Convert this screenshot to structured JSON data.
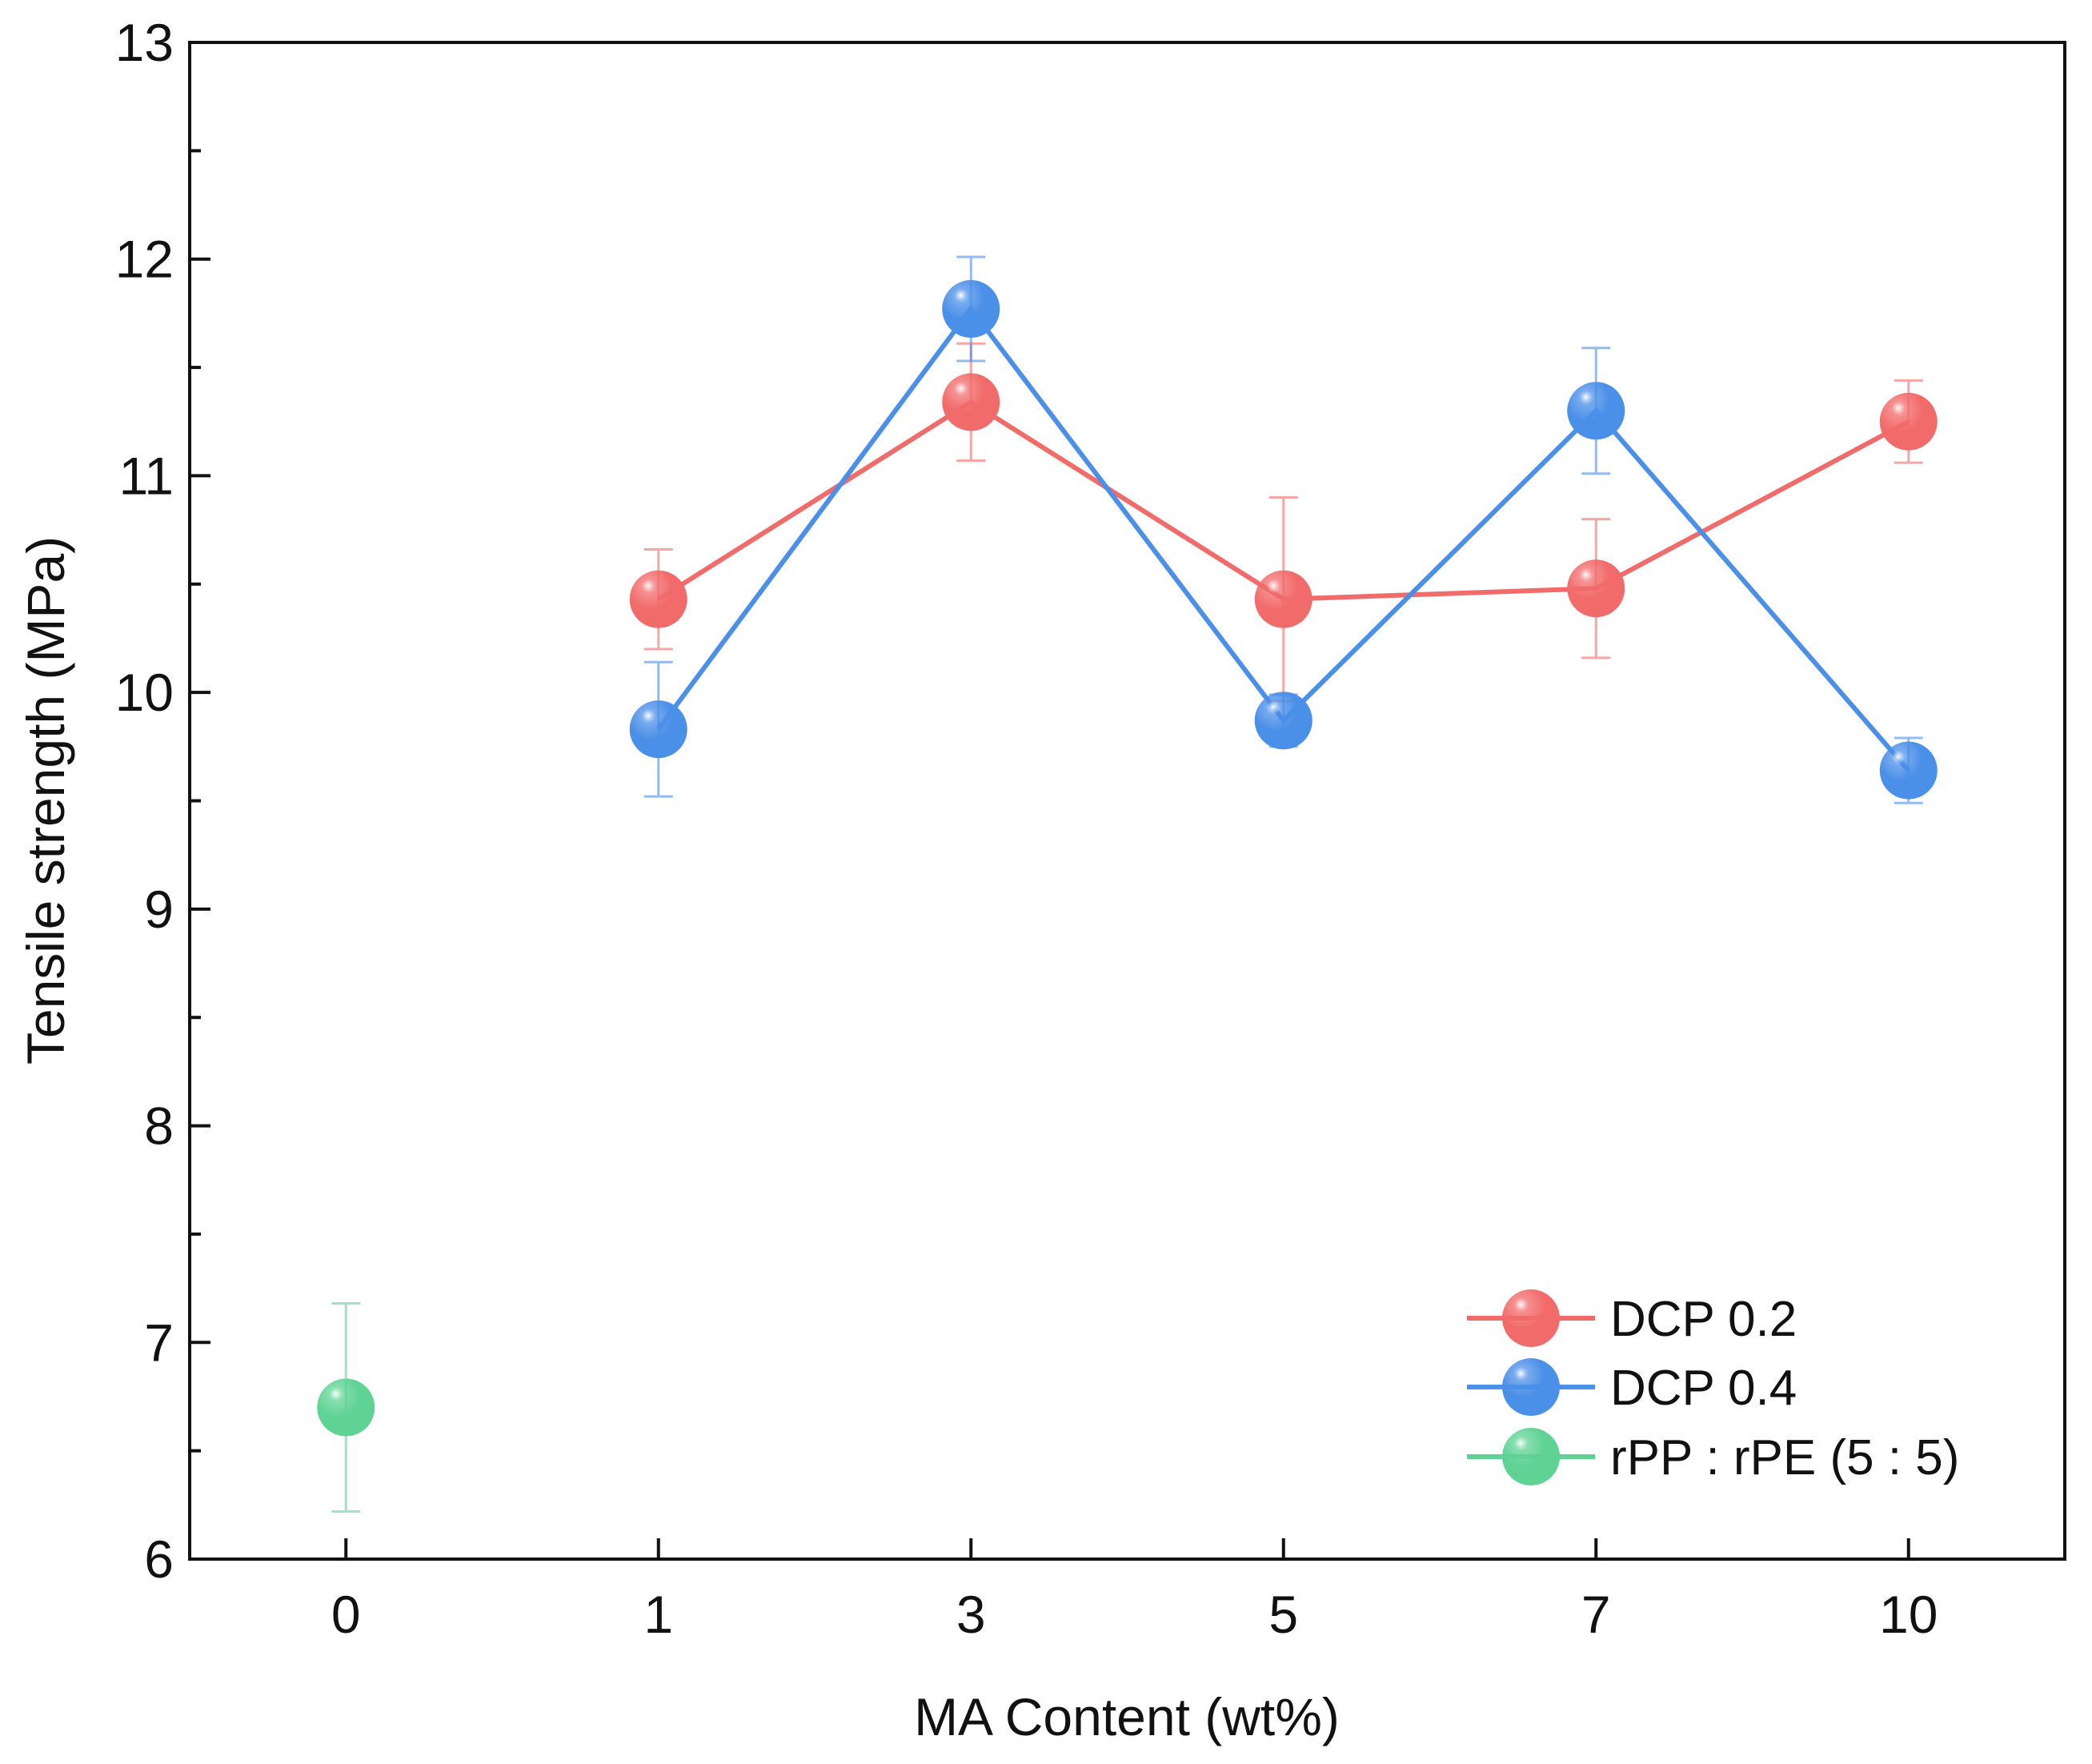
{
  "chart_data": {
    "type": "line",
    "title": "",
    "xlabel": "MA Content (wt%)",
    "ylabel": "Tensile strength (MPa)",
    "categories": [
      "0",
      "1",
      "3",
      "5",
      "7",
      "10"
    ],
    "ylim": [
      6,
      13
    ],
    "yticks": [
      "6",
      "7",
      "8",
      "9",
      "10",
      "11",
      "12",
      "13"
    ],
    "grid": false,
    "legend_position": "bottom-right",
    "series": [
      {
        "name": "DCP 0.2",
        "color": "#f26b6b",
        "points": [
          {
            "category": "1",
            "value": 10.43,
            "error": 0.23
          },
          {
            "category": "3",
            "value": 11.34,
            "error": 0.27
          },
          {
            "category": "5",
            "value": 10.43,
            "error": 0.47
          },
          {
            "category": "7",
            "value": 10.48,
            "error": 0.32
          },
          {
            "category": "10",
            "value": 11.25,
            "error": 0.19
          }
        ]
      },
      {
        "name": "DCP 0.4",
        "color": "#4a8fe8",
        "points": [
          {
            "category": "1",
            "value": 9.83,
            "error": 0.31
          },
          {
            "category": "3",
            "value": 11.77,
            "error": 0.24
          },
          {
            "category": "5",
            "value": 9.87,
            "error": 0.12
          },
          {
            "category": "7",
            "value": 11.3,
            "error": 0.29
          },
          {
            "category": "10",
            "value": 9.64,
            "error": 0.15
          }
        ]
      },
      {
        "name": "rPP : rPE (5 : 5)",
        "color": "#5ed394",
        "points": [
          {
            "category": "0",
            "value": 6.7,
            "error": 0.48
          }
        ]
      }
    ]
  }
}
